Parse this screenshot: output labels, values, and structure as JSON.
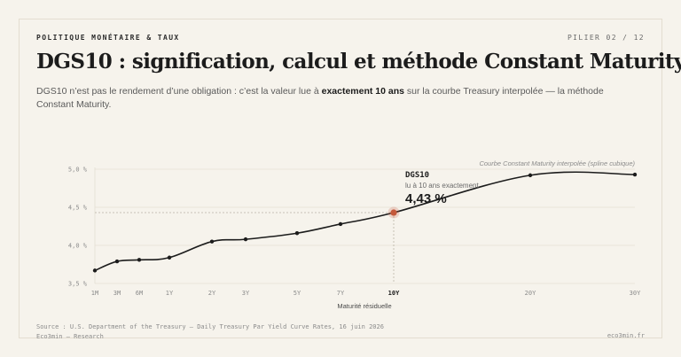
{
  "header": {
    "eyebrow": "POLITIQUE MONÉTAIRE & TAUX",
    "pager": "PILIER 02 / 12",
    "title": "DGS10 : signification, calcul et méthode Constant Maturity",
    "lede_before": "DGS10 n’est pas le rendement d’une obligation : c’est la valeur lue à ",
    "lede_bold": "exactement 10 ans",
    "lede_after": " sur la courbe Treasury interpolée — la méthode Constant Maturity."
  },
  "chart_data": {
    "type": "line",
    "categories": [
      "1M",
      "3M",
      "6M",
      "1Y",
      "2Y",
      "3Y",
      "5Y",
      "7Y",
      "10Y",
      "20Y",
      "30Y"
    ],
    "x_years": [
      0.0833,
      0.25,
      0.5,
      1,
      2,
      3,
      5,
      7,
      10,
      20,
      30
    ],
    "values": [
      3.67,
      3.79,
      3.81,
      3.84,
      4.05,
      4.08,
      4.16,
      4.28,
      4.43,
      4.92,
      4.93
    ],
    "highlight_index": 8,
    "ylim": [
      3.5,
      5.0
    ],
    "yticks": [
      "3,5 %",
      "4,0 %",
      "4,5 %",
      "5,0 %"
    ],
    "ytick_values": [
      3.5,
      4.0,
      4.5,
      5.0
    ],
    "xlabel": "Maturité résiduelle",
    "curve_note": "Curbe Constant Maturity interpolée (spline cubique)",
    "annotation": {
      "name": "DGS10",
      "subtitle": "lu à 10 ans exactement",
      "value": "4,43 %"
    },
    "colors": {
      "line": "#1c1c1c",
      "highlight": "#c4583a",
      "grid": "#e4dfd4"
    }
  },
  "footer": {
    "source": "Source : U.S. Department of the Treasury — Daily Treasury Par Yield Curve Rates, 16 juin 2026",
    "brand": "Eco3min — Research",
    "site": "eco3min.fr"
  }
}
